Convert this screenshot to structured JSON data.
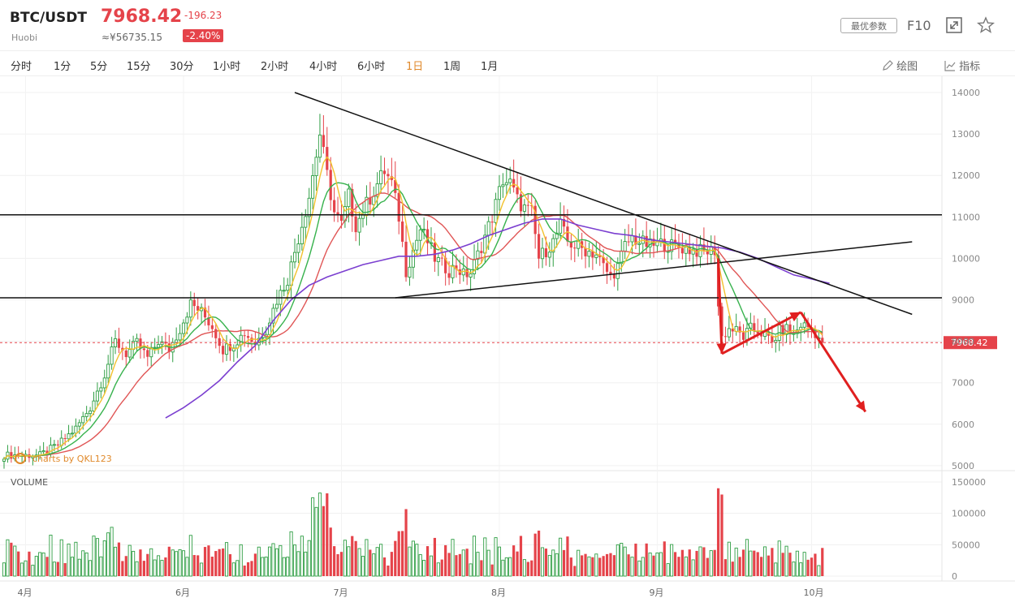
{
  "header": {
    "pair": "BTC/USDT",
    "exchange": "Huobi",
    "price": "7968.42",
    "cny_price": "≈¥56735.15",
    "change": "-196.23",
    "change_pct": "-2.40%",
    "params_label": "最优参数",
    "f10_label": "F10",
    "expand_icon": "expand-icon",
    "favorite_icon": "star-icon"
  },
  "tabs": [
    "分时",
    "1分",
    "5分",
    "15分",
    "30分",
    "1小时",
    "2小时",
    "4小时",
    "6小时",
    "1日",
    "1周",
    "1月"
  ],
  "active_tab": "1日",
  "tools": {
    "draw_label": "绘图",
    "indicator_label": "指标"
  },
  "watermark": "charts by QKL123",
  "volume_label": "VOLUME",
  "colors": {
    "up": "#2f9e44",
    "down": "#e5434a",
    "ma5": "#f2c12e",
    "ma10": "#37b24d",
    "ma20": "#e05555",
    "ma60": "#7b3fd0",
    "accent": "#e08a2c"
  },
  "chart_data": {
    "type": "candlestick",
    "price_axis": {
      "ticks": [
        14000,
        13000,
        12000,
        11000,
        10000,
        9000,
        8000,
        7000,
        6000,
        5000
      ],
      "ylim": [
        4800,
        14300
      ]
    },
    "volume_axis": {
      "ticks": [
        150000,
        100000,
        50000,
        0
      ],
      "ylim": [
        0,
        155000
      ]
    },
    "x_ticks": [
      "4月",
      "6月",
      "7月",
      "8月",
      "9月",
      "10月"
    ],
    "last_price_label": "7968.42",
    "horizontal_levels": [
      11050,
      9050
    ],
    "anchors": [
      [
        0,
        5250
      ],
      [
        10,
        5250
      ],
      [
        15,
        5500
      ],
      [
        20,
        5900
      ],
      [
        24,
        6400
      ],
      [
        28,
        7200
      ],
      [
        31,
        8000
      ],
      [
        34,
        7700
      ],
      [
        37,
        7950
      ],
      [
        40,
        7600
      ],
      [
        43,
        8000
      ],
      [
        46,
        7800
      ],
      [
        49,
        8300
      ],
      [
        52,
        8900
      ],
      [
        55,
        8700
      ],
      [
        58,
        8350
      ],
      [
        61,
        7800
      ],
      [
        64,
        7950
      ],
      [
        67,
        8200
      ],
      [
        70,
        7950
      ],
      [
        73,
        8300
      ],
      [
        76,
        9000
      ],
      [
        79,
        9500
      ],
      [
        82,
        10500
      ],
      [
        85,
        11500
      ],
      [
        88,
        13000
      ],
      [
        90,
        12000
      ],
      [
        92,
        11100
      ],
      [
        94,
        10800
      ],
      [
        96,
        11500
      ],
      [
        98,
        10800
      ],
      [
        101,
        11300
      ],
      [
        104,
        11800
      ],
      [
        106,
        12100
      ],
      [
        108,
        11800
      ],
      [
        110,
        11000
      ],
      [
        112,
        9700
      ],
      [
        114,
        10200
      ],
      [
        116,
        10700
      ],
      [
        118,
        10400
      ],
      [
        120,
        10000
      ],
      [
        122,
        9850
      ],
      [
        124,
        9700
      ],
      [
        126,
        9800
      ],
      [
        128,
        9600
      ],
      [
        130,
        9650
      ],
      [
        133,
        10300
      ],
      [
        136,
        11000
      ],
      [
        139,
        11900
      ],
      [
        141,
        11800
      ],
      [
        143,
        11400
      ],
      [
        145,
        11200
      ],
      [
        147,
        11100
      ],
      [
        149,
        10000
      ],
      [
        151,
        10200
      ],
      [
        153,
        10400
      ],
      [
        155,
        10800
      ],
      [
        157,
        10400
      ],
      [
        159,
        10300
      ],
      [
        162,
        10200
      ],
      [
        165,
        10100
      ],
      [
        167,
        9800
      ],
      [
        169,
        9550
      ],
      [
        171,
        9800
      ],
      [
        173,
        10300
      ],
      [
        175,
        10500
      ],
      [
        177,
        10400
      ],
      [
        180,
        10300
      ],
      [
        183,
        10350
      ],
      [
        186,
        10300
      ],
      [
        189,
        10250
      ],
      [
        192,
        10200
      ],
      [
        195,
        10150
      ],
      [
        198,
        10200
      ],
      [
        199,
        8850
      ],
      [
        200,
        8100
      ],
      [
        202,
        8300
      ],
      [
        204,
        8250
      ],
      [
        206,
        8100
      ],
      [
        208,
        8300
      ],
      [
        210,
        8250
      ],
      [
        212,
        8150
      ],
      [
        214,
        7950
      ],
      [
        216,
        8250
      ],
      [
        218,
        8300
      ],
      [
        220,
        8150
      ],
      [
        222,
        8400
      ],
      [
        224,
        8350
      ],
      [
        226,
        8200
      ],
      [
        228,
        7968
      ]
    ],
    "ma60_points": [
      [
        45,
        6150
      ],
      [
        50,
        6400
      ],
      [
        55,
        6700
      ],
      [
        60,
        7050
      ],
      [
        65,
        7500
      ],
      [
        70,
        7900
      ],
      [
        75,
        8500
      ],
      [
        80,
        9000
      ],
      [
        85,
        9350
      ],
      [
        90,
        9550
      ],
      [
        95,
        9700
      ],
      [
        100,
        9850
      ],
      [
        105,
        9950
      ],
      [
        110,
        10050
      ],
      [
        115,
        10050
      ],
      [
        120,
        10100
      ],
      [
        125,
        10200
      ],
      [
        130,
        10350
      ],
      [
        135,
        10550
      ],
      [
        140,
        10700
      ],
      [
        145,
        10850
      ],
      [
        150,
        10950
      ],
      [
        155,
        10950
      ],
      [
        160,
        10800
      ],
      [
        165,
        10700
      ],
      [
        170,
        10600
      ],
      [
        175,
        10550
      ],
      [
        180,
        10450
      ],
      [
        185,
        10400
      ],
      [
        190,
        10350
      ],
      [
        195,
        10300
      ],
      [
        200,
        10250
      ],
      [
        205,
        10150
      ],
      [
        210,
        10000
      ],
      [
        215,
        9800
      ],
      [
        220,
        9600
      ],
      [
        225,
        9500
      ],
      [
        230,
        9400
      ]
    ],
    "trendlines": [
      [
        [
          81,
          14000
        ],
        [
          253,
          8650
        ]
      ],
      [
        [
          109,
          9050
        ],
        [
          253,
          10400
        ]
      ]
    ],
    "arrows": [
      [
        [
          199,
          10000
        ],
        [
          200,
          7700
        ]
      ],
      [
        [
          200,
          7700
        ],
        [
          222,
          8700
        ]
      ],
      [
        [
          222,
          8700
        ],
        [
          240,
          6300
        ]
      ]
    ]
  }
}
